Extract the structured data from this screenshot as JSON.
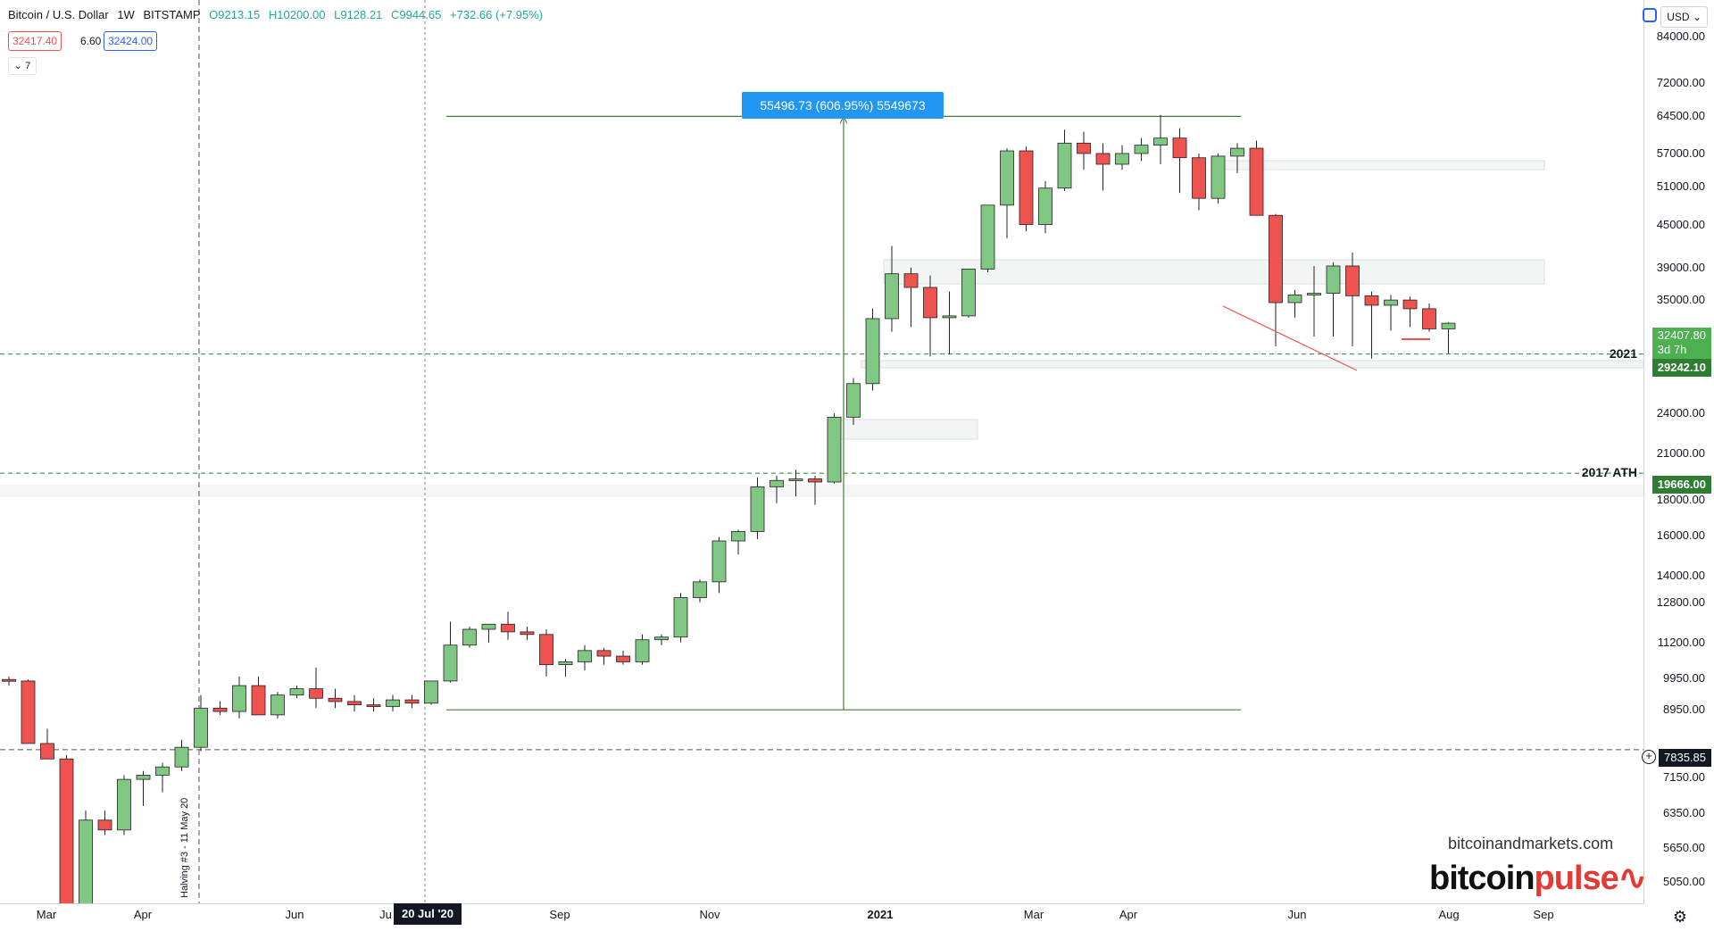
{
  "header": {
    "symbol": "Bitcoin / U.S. Dollar",
    "interval": "1W",
    "exchange": "BITSTAMP",
    "open": "O9213.15",
    "high": "H10200.00",
    "low": "L9128.21",
    "close": "C9944.65",
    "change": "+732.66 (+7.95%)"
  },
  "bid_ask": {
    "bid": "32417.40",
    "spread": "6.60",
    "ask": "32424.00"
  },
  "indicator_collapse": "7",
  "currency": "USD",
  "measure_label": "55496.73 (606.95%) 5549673",
  "halving_label": "Halving #3 - 11 May 20",
  "level_labels": {
    "year": "2021",
    "ath": "2017 ATH"
  },
  "price_tags": {
    "last_price": "32407.80",
    "countdown": "3d 7h",
    "level_2021": "29242.10",
    "level_ath": "19666.00",
    "crosshair_price": "7835.85"
  },
  "date_tag": "20 Jul '20",
  "watermark": {
    "site": "bitcoinandmarkets.com",
    "logo_a": "bitcoin",
    "logo_b": "pulse"
  },
  "colors": {
    "up": "#4caf50",
    "down": "#ef5350",
    "accent": "#2196f3",
    "up_fill": "#81c784"
  },
  "y_axis_labels": [
    "84000.00",
    "72000.00",
    "64500.00",
    "57000.00",
    "51000.00",
    "45000.00",
    "39000.00",
    "35000.00",
    "24000.00",
    "21000.00",
    "18000.00",
    "16000.00",
    "14000.00",
    "12800.00",
    "11200.00",
    "9950.00",
    "8950.00",
    "7150.00",
    "6350.00",
    "5650.00",
    "5050.00"
  ],
  "x_axis_labels": [
    "Mar",
    "Apr",
    "Jun",
    "Ju",
    "Sep",
    "Nov",
    "2021",
    "Mar",
    "Apr",
    "Jun",
    "Aug",
    "Sep"
  ],
  "chart_data": {
    "type": "candlestick",
    "title": "Bitcoin / U.S. Dollar",
    "interval": "1W",
    "y_scale": "log",
    "ylim": [
      4700,
      95000
    ],
    "candles": [
      [
        9900,
        10000,
        9700,
        9850
      ],
      [
        9850,
        9900,
        8400,
        8000
      ],
      [
        8000,
        8400,
        7700,
        7600
      ],
      [
        7600,
        7700,
        4500,
        3900
      ],
      [
        4500,
        6400,
        4100,
        6200
      ],
      [
        6200,
        6400,
        5900,
        6000
      ],
      [
        6000,
        7200,
        5900,
        7100
      ],
      [
        7100,
        7300,
        6500,
        7200
      ],
      [
        7200,
        7500,
        6800,
        7400
      ],
      [
        7400,
        8100,
        7300,
        7900
      ],
      [
        7900,
        9400,
        7800,
        9000
      ],
      [
        9000,
        9200,
        8800,
        8900
      ],
      [
        8900,
        10000,
        8700,
        9700
      ],
      [
        9700,
        10000,
        8800,
        8800
      ],
      [
        8800,
        9500,
        8700,
        9400
      ],
      [
        9400,
        9700,
        9300,
        9600
      ],
      [
        9600,
        10300,
        9000,
        9300
      ],
      [
        9300,
        9600,
        9000,
        9200
      ],
      [
        9200,
        9400,
        8900,
        9100
      ],
      [
        9100,
        9300,
        8900,
        9050
      ],
      [
        9050,
        9400,
        8900,
        9250
      ],
      [
        9250,
        9400,
        9000,
        9150
      ],
      [
        9150,
        9800,
        9100,
        9850
      ],
      [
        9850,
        12000,
        9800,
        11100
      ],
      [
        11100,
        11800,
        11000,
        11700
      ],
      [
        11700,
        11900,
        11200,
        11900
      ],
      [
        11900,
        12400,
        11300,
        11600
      ],
      [
        11600,
        11800,
        11300,
        11500
      ],
      [
        11500,
        11700,
        10000,
        10400
      ],
      [
        10400,
        10600,
        10000,
        10500
      ],
      [
        10500,
        11100,
        10200,
        10900
      ],
      [
        10900,
        11000,
        10400,
        10700
      ],
      [
        10700,
        10900,
        10400,
        10500
      ],
      [
        10500,
        11500,
        10400,
        11300
      ],
      [
        11300,
        11500,
        11100,
        11400
      ],
      [
        11400,
        13200,
        11200,
        13000
      ],
      [
        13000,
        13800,
        12800,
        13700
      ],
      [
        13700,
        15900,
        13200,
        15700
      ],
      [
        15700,
        16300,
        15000,
        16200
      ],
      [
        16200,
        19400,
        15800,
        18800
      ],
      [
        18800,
        19500,
        17800,
        19200
      ],
      [
        19200,
        19900,
        18200,
        19300
      ],
      [
        19300,
        19500,
        17700,
        19100
      ],
      [
        19100,
        24000,
        19000,
        23700
      ],
      [
        23700,
        27000,
        23100,
        26500
      ],
      [
        26500,
        34000,
        25900,
        32900
      ],
      [
        32900,
        41900,
        31500,
        38200
      ],
      [
        38200,
        39000,
        32000,
        36500
      ],
      [
        36500,
        38000,
        29000,
        33000
      ],
      [
        33000,
        36000,
        29200,
        33200
      ],
      [
        33200,
        38500,
        33000,
        38800
      ],
      [
        38800,
        48000,
        38400,
        48000
      ],
      [
        48000,
        58000,
        43000,
        57500
      ],
      [
        57500,
        58300,
        44000,
        45000
      ],
      [
        45000,
        52000,
        43700,
        50800
      ],
      [
        50800,
        61700,
        50300,
        59000
      ],
      [
        59000,
        61300,
        54000,
        57000
      ],
      [
        57000,
        59000,
        50400,
        55000
      ],
      [
        55000,
        58600,
        54000,
        57000
      ],
      [
        57000,
        60000,
        55600,
        58600
      ],
      [
        58600,
        64800,
        55000,
        60000
      ],
      [
        60000,
        62000,
        50000,
        56200
      ],
      [
        56200,
        57000,
        47200,
        49100
      ],
      [
        49100,
        57000,
        48300,
        56500
      ],
      [
        56500,
        59000,
        53400,
        58000
      ],
      [
        58000,
        59500,
        46800,
        46400
      ],
      [
        46400,
        46600,
        30000,
        34700
      ],
      [
        34700,
        36200,
        33000,
        35600
      ],
      [
        35600,
        39200,
        31000,
        35800
      ],
      [
        35800,
        39700,
        31000,
        39200
      ],
      [
        39200,
        41000,
        30000,
        35500
      ],
      [
        35500,
        36000,
        28800,
        34400
      ],
      [
        34400,
        35600,
        31600,
        35000
      ],
      [
        35000,
        35400,
        32000,
        34000
      ],
      [
        34000,
        34600,
        31500,
        31800
      ],
      [
        31800,
        32500,
        29300,
        32400
      ]
    ],
    "levels": [
      {
        "name": "2021",
        "value": 29242.1
      },
      {
        "name": "2017 ATH",
        "value": 19666.0
      },
      {
        "name": "dotted",
        "value": 7835.85
      }
    ],
    "measure": {
      "from": 8950,
      "to": 64500,
      "label": "55496.73 (606.95%) 5549673"
    },
    "x_ticks": [
      "Mar",
      "Apr",
      "Jun",
      "Ju",
      "Sep",
      "Nov",
      "2021",
      "Mar",
      "Apr",
      "Jun",
      "Aug",
      "Sep"
    ]
  }
}
